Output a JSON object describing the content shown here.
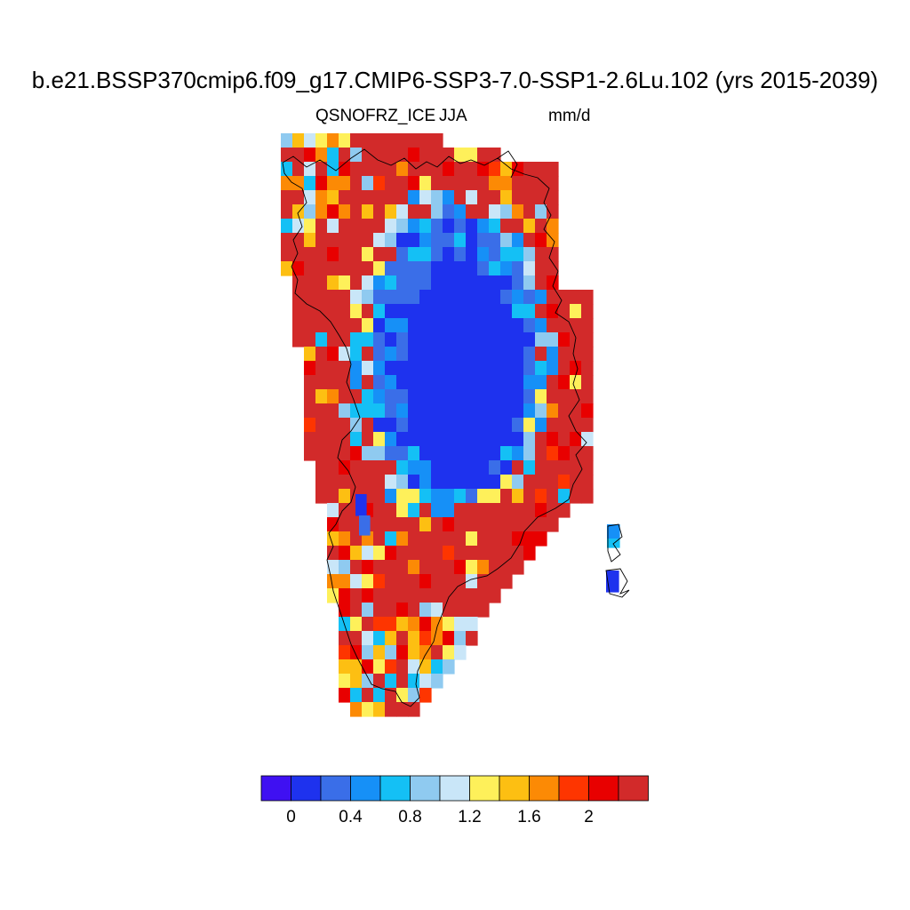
{
  "title": "b.e21.BSSP370cmip6.f09_g17.CMIP6-SSP3-7.0-SSP1-2.6Lu.102 (yrs 2015-2039)",
  "variable": "QSNOFRZ_ICE",
  "season": "JJA",
  "units": "mm/d",
  "colorbar": {
    "colors": [
      "#3f10f2",
      "#1e32ee",
      "#3a6ee8",
      "#1690f7",
      "#14c0f5",
      "#8fcaf0",
      "#c9e6f8",
      "#fef05a",
      "#fdbf12",
      "#fc8a05",
      "#fe3500",
      "#e80000",
      "#d22a2a"
    ],
    "tick_labels": [
      "0",
      "0.4",
      "0.8",
      "1.2",
      "1.6",
      "2"
    ]
  }
}
